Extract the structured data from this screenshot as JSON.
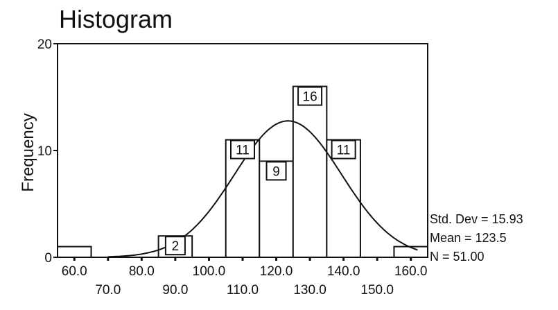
{
  "chart_data": {
    "type": "bar",
    "title": "Histogram",
    "xlabel": "",
    "ylabel": "Frequency",
    "xlim": [
      55,
      165
    ],
    "ylim": [
      0,
      20
    ],
    "bin_width": 10,
    "bins": [
      {
        "center": 60.0,
        "value": 1,
        "label": ""
      },
      {
        "center": 70.0,
        "value": 0,
        "label": ""
      },
      {
        "center": 80.0,
        "value": 0,
        "label": ""
      },
      {
        "center": 90.0,
        "value": 2,
        "label": "2"
      },
      {
        "center": 100.0,
        "value": 0,
        "label": ""
      },
      {
        "center": 110.0,
        "value": 11,
        "label": "11"
      },
      {
        "center": 120.0,
        "value": 9,
        "label": "9"
      },
      {
        "center": 130.0,
        "value": 16,
        "label": "16"
      },
      {
        "center": 140.0,
        "value": 11,
        "label": "11"
      },
      {
        "center": 150.0,
        "value": 0,
        "label": ""
      },
      {
        "center": 160.0,
        "value": 1,
        "label": ""
      }
    ],
    "x_ticks_upper": [
      "60.0",
      "80.0",
      "100.0",
      "120.0",
      "140.0",
      "160.0"
    ],
    "x_ticks_lower": [
      "70.0",
      "90.0",
      "110.0",
      "130.0",
      "150.0"
    ],
    "y_ticks": [
      "0",
      "10",
      "20"
    ],
    "normal_curve": {
      "mean": 123.5,
      "std_dev": 15.93,
      "n": 51
    },
    "stats": {
      "std_dev": "Std. Dev = 15.93",
      "mean": "Mean = 123.5",
      "n": "N = 51.00"
    },
    "colors": {
      "bar_fill": "#ffffff",
      "bar_stroke": "#111111",
      "curve": "#111111"
    }
  }
}
